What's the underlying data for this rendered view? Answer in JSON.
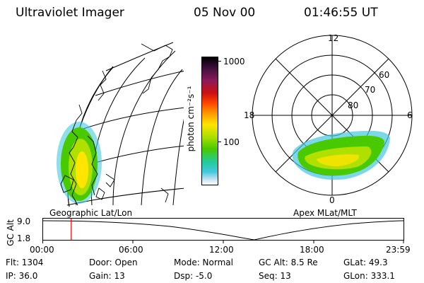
{
  "header": {
    "instrument": "Ultraviolet Imager",
    "date": "05 Nov 00",
    "time": "01:46:55 UT"
  },
  "colorbar": {
    "label": "photon cm⁻²s⁻¹",
    "ticks": [
      "1000",
      "100"
    ],
    "colors": [
      "#000000",
      "#3b0f3b",
      "#8a1a5a",
      "#cc1010",
      "#ff4500",
      "#ff9900",
      "#ffe500",
      "#b0e000",
      "#49c900",
      "#22cc99",
      "#44c8e0",
      "#c8e4f0",
      "#ffffff"
    ]
  },
  "polar_plot": {
    "lat_labels": [
      "60",
      "70",
      "80"
    ],
    "mlt_labels": {
      "top": "12",
      "left": "18",
      "right": "6",
      "bottom": "0"
    }
  },
  "map_labels": {
    "left": "Geographic Lat/Lon",
    "right": "Apex MLat/MLT"
  },
  "timeline": {
    "ylabel": "GC Alt",
    "yticks": [
      "9.0",
      "1.8"
    ],
    "xticks": [
      "00:00",
      "06:00",
      "12:00",
      "18:00",
      "23:59"
    ],
    "current_time_fraction": 0.078
  },
  "info": {
    "flt": "Flt:  1304",
    "ip": "IP:  36.0",
    "door": "Door:  Open",
    "gain": "Gain:  13",
    "mode": "Mode:  Normal",
    "dsp": "Dsp:     -5.0",
    "gc_alt": "GC Alt:  8.5 Re",
    "seq": "Seq:  13",
    "glat": "GLat:    49.3",
    "glon": "GLon:  333.1"
  }
}
